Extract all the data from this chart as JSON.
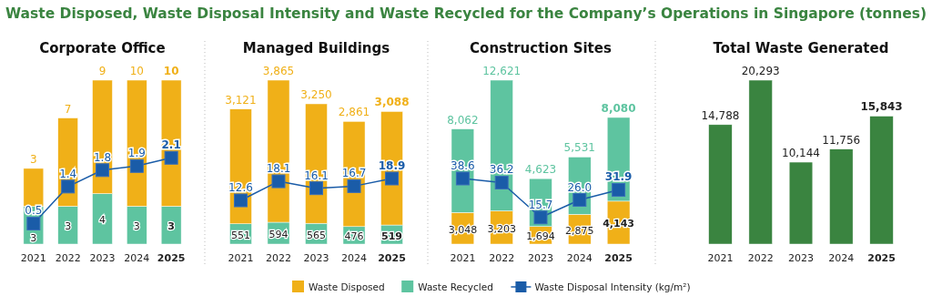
{
  "chart_data": [
    {
      "type": "bar",
      "title": "Corporate Office",
      "categories": [
        "2021",
        "2022",
        "2023",
        "2024",
        "2025"
      ],
      "stacked": true,
      "legend": "bottom",
      "marker": "square",
      "annotations": [
        "Waste Disposed, Waste Disposal Intensity and Waste Recycled for the Company’s Operations in Singapore (tonnes)"
      ],
      "series": [
        {
          "name": "Waste Recycled",
          "color": "#5ec4a0",
          "values": [
            3,
            3,
            4,
            3,
            3
          ],
          "value_labels": [
            "3",
            "3",
            "4",
            "3",
            "3"
          ]
        },
        {
          "name": "Waste Disposed",
          "color": "#f0b018",
          "values": [
            3,
            7,
            9,
            10,
            10
          ],
          "value_labels": [
            "3",
            "7",
            "9",
            "10",
            "10"
          ]
        },
        {
          "name": "Waste Disposal Intensity (kg/m²)",
          "type": "line",
          "axis": "y2",
          "color": "#1a5ca8",
          "values": [
            0.5,
            1.4,
            1.8,
            1.9,
            2.1
          ],
          "value_labels": [
            "0.5",
            "1.4",
            "1.8",
            "1.9",
            "2.1"
          ]
        }
      ]
    },
    {
      "type": "bar",
      "title": "Managed Buildings",
      "categories": [
        "2021",
        "2022",
        "2023",
        "2024",
        "2025"
      ],
      "stacked": true,
      "marker": "square",
      "series": [
        {
          "color": "#5ec4a0",
          "values": [
            551,
            594,
            565,
            476,
            519
          ],
          "value_labels": [
            "551",
            "594",
            "565",
            "476",
            "519"
          ]
        },
        {
          "color": "#f0b018",
          "values": [
            3121,
            3865,
            3250,
            2861,
            3088
          ],
          "value_labels": [
            "3,121",
            "3,865",
            "3,250",
            "2,861",
            "3,088"
          ]
        },
        {
          "type": "line",
          "axis": "y2",
          "color": "#1a5ca8",
          "values": [
            12.6,
            18.1,
            16.1,
            16.7,
            18.9
          ],
          "value_labels": [
            "12.6",
            "18.1",
            "16.1",
            "16.7",
            "18.9"
          ]
        }
      ]
    },
    {
      "type": "bar",
      "title": "Construction Sites",
      "categories": [
        "2021",
        "2022",
        "2023",
        "2024",
        "2025"
      ],
      "stacked": true,
      "marker": "square",
      "series": [
        {
          "color": "#f0b018",
          "values": [
            3048,
            3203,
            1694,
            2875,
            4143
          ],
          "value_labels": [
            "3,048",
            "3,203",
            "1,694",
            "2,875",
            "4,143"
          ]
        },
        {
          "color": "#5ec4a0",
          "values": [
            8062,
            12621,
            4623,
            5531,
            8080
          ],
          "value_labels": [
            "8,062",
            "12,621",
            "4,623",
            "5,531",
            "8,080"
          ]
        },
        {
          "type": "line",
          "axis": "y2",
          "color": "#1a5ca8",
          "values": [
            38.6,
            36.2,
            15.7,
            26.0,
            31.9
          ],
          "value_labels": [
            "38.6",
            "36.2",
            "15.7",
            "26.0",
            "31.9"
          ]
        }
      ]
    },
    {
      "type": "bar",
      "title": "Total Waste Generated",
      "categories": [
        "2021",
        "2022",
        "2023",
        "2024",
        "2025"
      ],
      "series": [
        {
          "color": "#3a8440",
          "values": [
            14788,
            20293,
            10144,
            11756,
            15843
          ],
          "value_labels": [
            "14,788",
            "20,293",
            "10,144",
            "11,756",
            "15,843"
          ]
        }
      ]
    }
  ]
}
